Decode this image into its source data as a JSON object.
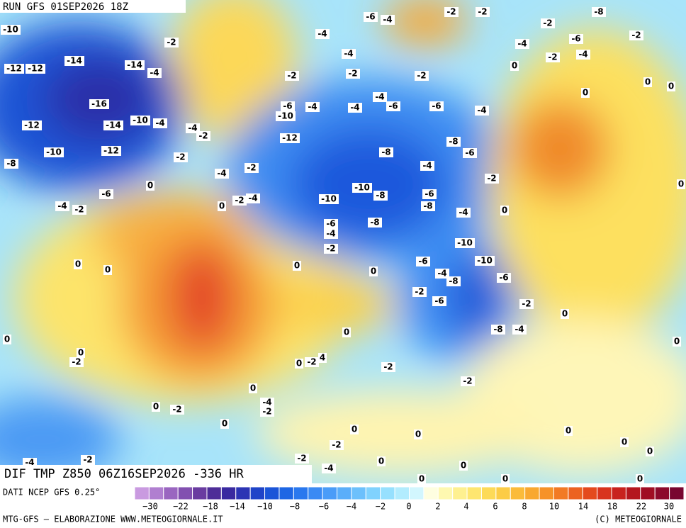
{
  "header": {
    "title": "RUN GFS 01SEP2026 18Z"
  },
  "map": {
    "caption": "DIF TMP Z850 06Z16SEP2026 -336 HR",
    "contour_labels": [
      -10,
      -12,
      -12,
      -14,
      -16,
      -14,
      -4,
      -12,
      -14,
      -10,
      -4,
      -10,
      -12,
      -8,
      -2,
      -2,
      -4,
      -2,
      -4,
      -2,
      -2,
      -4,
      0,
      0,
      -6,
      -4,
      -2,
      0,
      0,
      0,
      0,
      -2,
      -2,
      -6,
      -10,
      -4,
      -12,
      -4,
      -4,
      -2,
      -4,
      -4,
      -6,
      -6,
      -4,
      -2,
      -2,
      -8,
      -2,
      -6,
      -4,
      -2,
      -4,
      -2,
      -2,
      0,
      0,
      0,
      0,
      -6,
      -4,
      -8,
      -6,
      -8,
      -4,
      -2,
      -10,
      -8,
      -6,
      -8,
      -10,
      -6,
      -4,
      -2,
      -8,
      -4,
      0,
      -10,
      -10,
      -6,
      -4,
      -8,
      -6,
      -2,
      -6,
      -2,
      -8,
      -4,
      0,
      0,
      0,
      0,
      0,
      0,
      -2,
      -2,
      -2,
      0,
      -4,
      -2,
      0,
      -2,
      0,
      0,
      0,
      0,
      -2,
      -2,
      0,
      0,
      -2,
      -4,
      0,
      0,
      -4,
      0,
      0,
      0,
      0,
      4
    ]
  },
  "footer": {
    "source": "DATI NCEP GFS 0.25°",
    "credit": "MTG-GFS — ELABORAZIONE WWW.METEOGIORNALE.IT",
    "copyright": "(C) METEOGIORNALE"
  },
  "colorbar": {
    "ticks": [
      "−30",
      "−22",
      "−18",
      "−14",
      "−10",
      "−8",
      "−6",
      "−4",
      "−2",
      "0",
      "2",
      "4",
      "6",
      "8",
      "10",
      "14",
      "18",
      "22",
      "30"
    ],
    "colors": [
      "#c99ae0",
      "#b07fd0",
      "#9a66c0",
      "#8250b0",
      "#6a3ca0",
      "#4e2d98",
      "#3a2aa0",
      "#2c34b4",
      "#1f44c8",
      "#1b55d8",
      "#1e66e4",
      "#2a78ee",
      "#3a8af4",
      "#4a9cf8",
      "#5aaefa",
      "#6cc0fc",
      "#80d2fe",
      "#96e0fe",
      "#b2ecfe",
      "#d2f6fe",
      "#fefee0",
      "#fef8b0",
      "#fef090",
      "#fee670",
      "#fdda58",
      "#fccc46",
      "#fbbb3a",
      "#f9a830",
      "#f69228",
      "#f27a24",
      "#ec6220",
      "#e44a1e",
      "#d8341e",
      "#c8221e",
      "#b4161e",
      "#a00e24",
      "#8c0a2c",
      "#780630"
    ]
  }
}
